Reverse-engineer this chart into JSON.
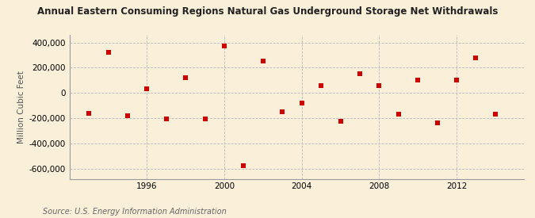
{
  "title": "Annual Eastern Consuming Regions Natural Gas Underground Storage Net Withdrawals",
  "ylabel": "Million Cubic Feet",
  "source": "Source: U.S. Energy Information Administration",
  "background_color": "#faefd9",
  "plot_background_color": "#faefd9",
  "marker_color": "#cc0000",
  "years": [
    1993,
    1994,
    1995,
    1996,
    1997,
    1998,
    1999,
    2000,
    2001,
    2002,
    2003,
    2004,
    2005,
    2006,
    2007,
    2008,
    2009,
    2010,
    2011,
    2012,
    2013,
    2014
  ],
  "values": [
    -160000,
    320000,
    -180000,
    30000,
    -205000,
    120000,
    -205000,
    375000,
    -575000,
    255000,
    -150000,
    -80000,
    55000,
    -225000,
    155000,
    55000,
    -165000,
    100000,
    -240000,
    100000,
    280000,
    -170000
  ],
  "ylim": [
    -680000,
    460000
  ],
  "yticks": [
    -600000,
    -400000,
    -200000,
    0,
    200000,
    400000
  ],
  "xticks": [
    1996,
    2000,
    2004,
    2008,
    2012
  ],
  "xlim": [
    1992.0,
    2015.5
  ],
  "grid_color": "#bbbbbb",
  "title_fontsize": 8.5,
  "label_fontsize": 7.5,
  "tick_fontsize": 7.5,
  "source_fontsize": 7,
  "marker_size": 5
}
